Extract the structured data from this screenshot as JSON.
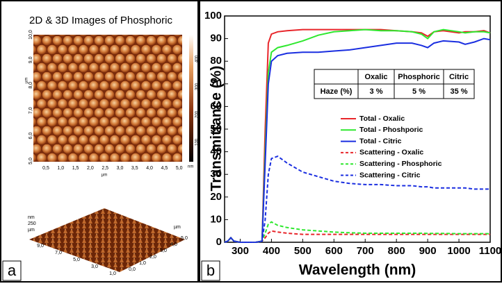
{
  "afm": {
    "title": "2D & 3D Images of Phosphoric",
    "x_ticks": [
      "0,5",
      "1,0",
      "1,5",
      "2,0",
      "2,5",
      "3,0",
      "3,5",
      "4,0",
      "4,5",
      "5,0"
    ],
    "y_ticks": [
      "5,0",
      "6,0",
      "7,0",
      "8,0",
      "9,0",
      "10,0"
    ],
    "colorbar_ticks": [
      "100",
      "200",
      "300",
      "400"
    ],
    "colorbar_unit": "nm",
    "axis_unit": "µm",
    "d3_left_ticks": [
      "9,0",
      "7,0",
      "5,0",
      "3,0",
      "1,0"
    ],
    "d3_right_ticks": [
      "0,0",
      "1,0",
      "2,0",
      "3,0",
      "4,0",
      "5,0"
    ],
    "d3_z_unit": "nm",
    "d3_z_tick": "250"
  },
  "panel_labels": [
    "a",
    "b"
  ],
  "chart_data": {
    "type": "line",
    "x_label": "Wavelength (nm)",
    "y_label": "Transmittance (%)",
    "x": [
      250,
      260,
      270,
      280,
      300,
      350,
      370,
      380,
      390,
      400,
      420,
      450,
      500,
      550,
      600,
      650,
      700,
      750,
      800,
      850,
      880,
      900,
      920,
      950,
      1000,
      1020,
      1050,
      1080,
      1100
    ],
    "xlim": [
      250,
      1100
    ],
    "xticks": [
      300,
      400,
      500,
      600,
      700,
      800,
      900,
      1000,
      1100
    ],
    "ylim": [
      0,
      100
    ],
    "yticks": [
      0,
      10,
      20,
      30,
      40,
      50,
      60,
      70,
      80,
      90,
      100
    ],
    "legend": "center-right",
    "series": [
      {
        "name": "Total - Oxalic",
        "color": "#e8252a",
        "style": "solid",
        "values": [
          0,
          0.5,
          2,
          0.5,
          0,
          0,
          0.5,
          50,
          88,
          92,
          93,
          93.5,
          94,
          94,
          94,
          94,
          94,
          94,
          93.5,
          93,
          92.5,
          91,
          93,
          93.5,
          92.5,
          93,
          93,
          93.5,
          92.5
        ]
      },
      {
        "name": "Total - Phoshporic",
        "color": "#2ee82e",
        "style": "solid",
        "values": [
          0,
          0.5,
          2,
          0.5,
          0,
          0,
          0.5,
          40,
          75,
          84,
          86,
          87,
          89,
          91.5,
          93,
          93.5,
          94,
          93.5,
          93.5,
          93,
          92,
          90,
          93,
          94,
          93,
          92.5,
          93,
          93,
          92.5
        ]
      },
      {
        "name": "Total - Citric",
        "color": "#1a2ee0",
        "style": "solid",
        "values": [
          0,
          0.5,
          2,
          0.5,
          0,
          0,
          0.5,
          35,
          70,
          80,
          82.5,
          83.5,
          84,
          84,
          84.5,
          85,
          86,
          87,
          88,
          88,
          87,
          86,
          88,
          89,
          88.5,
          87.5,
          88.5,
          90,
          89.5
        ]
      },
      {
        "name": "Scattering - Oxalic",
        "color": "#e8252a",
        "style": "dashed",
        "values": [
          0,
          0.5,
          2,
          0.5,
          0,
          0,
          0.5,
          2,
          4,
          5,
          4.5,
          4,
          3.5,
          3.5,
          3.5,
          3.5,
          3.5,
          3.5,
          3.5,
          3.5,
          3.5,
          3.5,
          3.5,
          3.5,
          3.5,
          3.5,
          3.5,
          3.5,
          3.5
        ]
      },
      {
        "name": "Scattering - Phosphoric",
        "color": "#2ee82e",
        "style": "dashed",
        "values": [
          0,
          0.5,
          2,
          0.5,
          0,
          0,
          0.5,
          4,
          8,
          9,
          7.5,
          6.5,
          5.5,
          5,
          4.5,
          4.2,
          4,
          4,
          4,
          4,
          4,
          3.9,
          3.9,
          3.9,
          3.8,
          3.8,
          3.8,
          3.8,
          3.8
        ]
      },
      {
        "name": "Scattering - Citric",
        "color": "#1a2ee0",
        "style": "dashed",
        "values": [
          0,
          0.5,
          2,
          0.5,
          0,
          0,
          0.5,
          10,
          30,
          37,
          38,
          35,
          31,
          29,
          27,
          26,
          25.5,
          25.5,
          25,
          25,
          24.5,
          24.5,
          24,
          24,
          24,
          24,
          23.5,
          23.5,
          23.5
        ]
      }
    ],
    "table": {
      "row_label": "Haze (%)",
      "columns": [
        "Oxalic",
        "Phosphoric",
        "Citric"
      ],
      "row": [
        "3 %",
        "5 %",
        "35 %"
      ]
    }
  }
}
